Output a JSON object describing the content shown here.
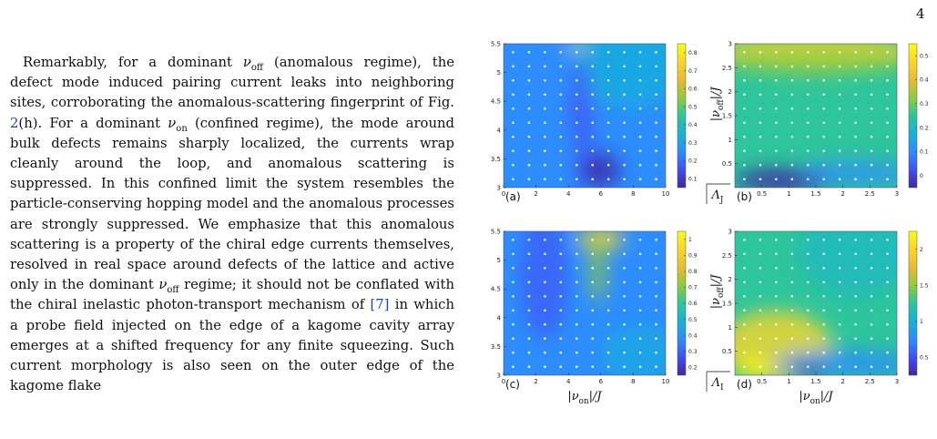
{
  "page_number": "4",
  "paragraph": [
    {
      "t": "Remarkably, for a dominant "
    },
    {
      "v": "ν",
      "sub": "off"
    },
    {
      "t": " (anomalous regime), the defect mode induced pairing current leaks into neighboring sites, corroborating the anomalous-scattering fingerprint of Fig. "
    },
    {
      "ref": "2"
    },
    {
      "t": "(h). For a dominant "
    },
    {
      "v": "ν",
      "sub": "on"
    },
    {
      "t": " (confined regime), the mode around bulk defects remains sharply localized, the currents wrap cleanly around the loop, and anomalous scattering is suppressed. In this confined limit the system resembles the particle-conserving hopping model and the anomalous processes are strongly suppressed. We emphasize that this anomalous scattering is a property of the chiral edge currents themselves, resolved in real space around defects of the lattice and active only in the dominant "
    },
    {
      "v": "ν",
      "sub": "off"
    },
    {
      "t": " regime; it should not be conflated with the chiral inelastic photon-transport mechanism of "
    },
    {
      "ref": "[7]"
    },
    {
      "t": " in which a probe field injected on the edge of a kagome cavity array emerges at a shifted frequency for any finite squeezing. Such current morphology is also seen on the outer edge of the kagome flake"
    }
  ],
  "colormap_stops": [
    "#3e26a8",
    "#4150f3",
    "#2d8dfd",
    "#16b2d8",
    "#2dc59c",
    "#90cb3e",
    "#e9ba30",
    "#fbd628",
    "#f9fb15"
  ],
  "panels": [
    {
      "id": "a",
      "letter": "(a)",
      "x_ticks": [
        "0",
        "2",
        "4",
        "6",
        "8",
        "10"
      ],
      "y_ticks": [
        "3",
        "3.5",
        "4",
        "4.5",
        "5",
        "5.5"
      ],
      "colorbar_ticks": [
        "0.1",
        "0.2",
        "0.3",
        "0.4",
        "0.5",
        "0.6",
        "0.7",
        "0.8"
      ],
      "xlabel": "",
      "ylabel": "",
      "side_label": ""
    },
    {
      "id": "b",
      "letter": "(b)",
      "x_ticks": [
        "0.5",
        "1",
        "1.5",
        "2",
        "2.5",
        "3"
      ],
      "y_ticks": [
        "0.5",
        "1",
        "1.5",
        "2",
        "2.5",
        "3"
      ],
      "colorbar_ticks": [
        "0",
        "0.1",
        "0.2",
        "0.3",
        "0.4",
        "0.5"
      ],
      "xlabel": "",
      "ylabel": "|ν_off|/J",
      "side_label": "Λ_J"
    },
    {
      "id": "c",
      "letter": "(c)",
      "x_ticks": [
        "0",
        "2",
        "4",
        "6",
        "8",
        "10"
      ],
      "y_ticks": [
        "3",
        "3.5",
        "4",
        "4.5",
        "5",
        "5.5"
      ],
      "colorbar_ticks": [
        "0.2",
        "0.3",
        "0.4",
        "0.5",
        "0.6",
        "0.7",
        "0.8",
        "0.9",
        "1"
      ],
      "xlabel": "|ν_on|/J",
      "ylabel": "",
      "side_label": ""
    },
    {
      "id": "d",
      "letter": "(d)",
      "x_ticks": [
        "0.5",
        "1",
        "1.5",
        "2",
        "2.5",
        "3"
      ],
      "y_ticks": [
        "0.5",
        "1",
        "1.5",
        "2",
        "2.5",
        "3"
      ],
      "colorbar_ticks": [
        "0.5",
        "1",
        "1.5",
        "2"
      ],
      "xlabel": "|ν_on|/J",
      "ylabel": "|ν_off|/J",
      "side_label": "Λ_I"
    }
  ]
}
